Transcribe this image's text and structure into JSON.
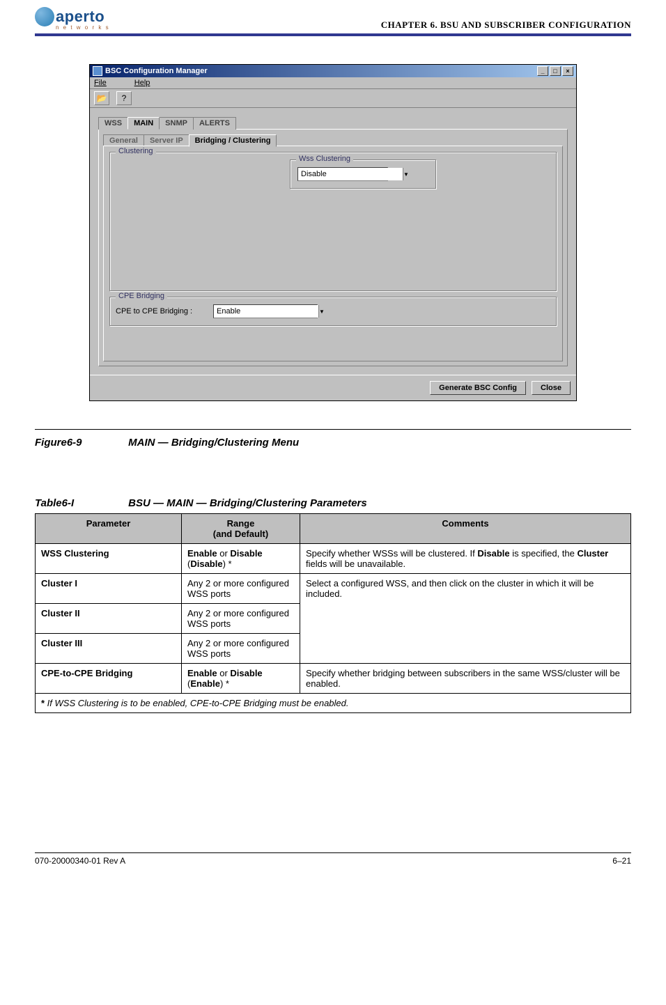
{
  "header": {
    "logo_text": "aperto",
    "logo_sub": "n e t w o r k s",
    "chapter_line": "CHAPTER 6.  BSU AND SUBSCRIBER CONFIGURATION"
  },
  "screenshot": {
    "title": "BSC Configuration Manager",
    "menu_file": "File",
    "menu_help": "Help",
    "tabs": {
      "wss": "WSS",
      "main": "MAIN",
      "snmp": "SNMP",
      "alerts": "ALERTS"
    },
    "subtabs": {
      "general": "General",
      "serverip": "Server IP",
      "bridging": "Bridging / Clustering"
    },
    "group_clustering": "Clustering",
    "group_wss_clustering": "Wss Clustering",
    "combo_wss_value": "Disable",
    "group_cpe": "CPE Bridging",
    "cpe_label": "CPE to CPE Bridging :",
    "combo_cpe_value": "Enable",
    "btn_generate": "Generate BSC Config",
    "btn_close": "Close"
  },
  "figure": {
    "num": "Figure6-9",
    "title": "MAIN — Bridging/Clustering Menu"
  },
  "table_caption": {
    "num": "Table6-I",
    "title": "BSU — MAIN — Bridging/Clustering Parameters"
  },
  "table": {
    "headers": {
      "param": "Parameter",
      "range": "Range\n(and Default)",
      "comments": "Comments"
    },
    "rows": [
      {
        "param": "WSS Clustering",
        "range_html": "<span class='b'>Enable</span> or <span class='b'>Disable</span> (<span class='b'>Disable</span>) *",
        "comments_html": "Specify whether WSSs will be clustered. If <span class='b'>Disable</span> is specified, the <span class='b'>Cluster</span> fields will be unavailable."
      },
      {
        "param": "Cluster I",
        "range_html": "Any 2 or more config­ured WSS ports",
        "comments_html": "Select a configured WSS, and then click on the clus­ter in which it will be included.",
        "rowspan_comments": 3
      },
      {
        "param": "Cluster II",
        "range_html": "Any 2 or more config­ured WSS ports"
      },
      {
        "param": "Cluster III",
        "range_html": "Any 2 or more config­ured WSS ports"
      },
      {
        "param": "CPE-to-CPE Bridging",
        "range_html": "<span class='b'>Enable</span> or <span class='b'>Disable</span> (<span class='b'>Enable</span>) *",
        "comments_html": "Specify whether bridging between subscribers in the same WSS/cluster will be enabled."
      }
    ],
    "footnote": "If WSS Clustering is to be enabled, CPE-to-CPE Bridging must be enabled."
  },
  "footer": {
    "left": "070-20000340-01 Rev A",
    "right": "6–21"
  }
}
